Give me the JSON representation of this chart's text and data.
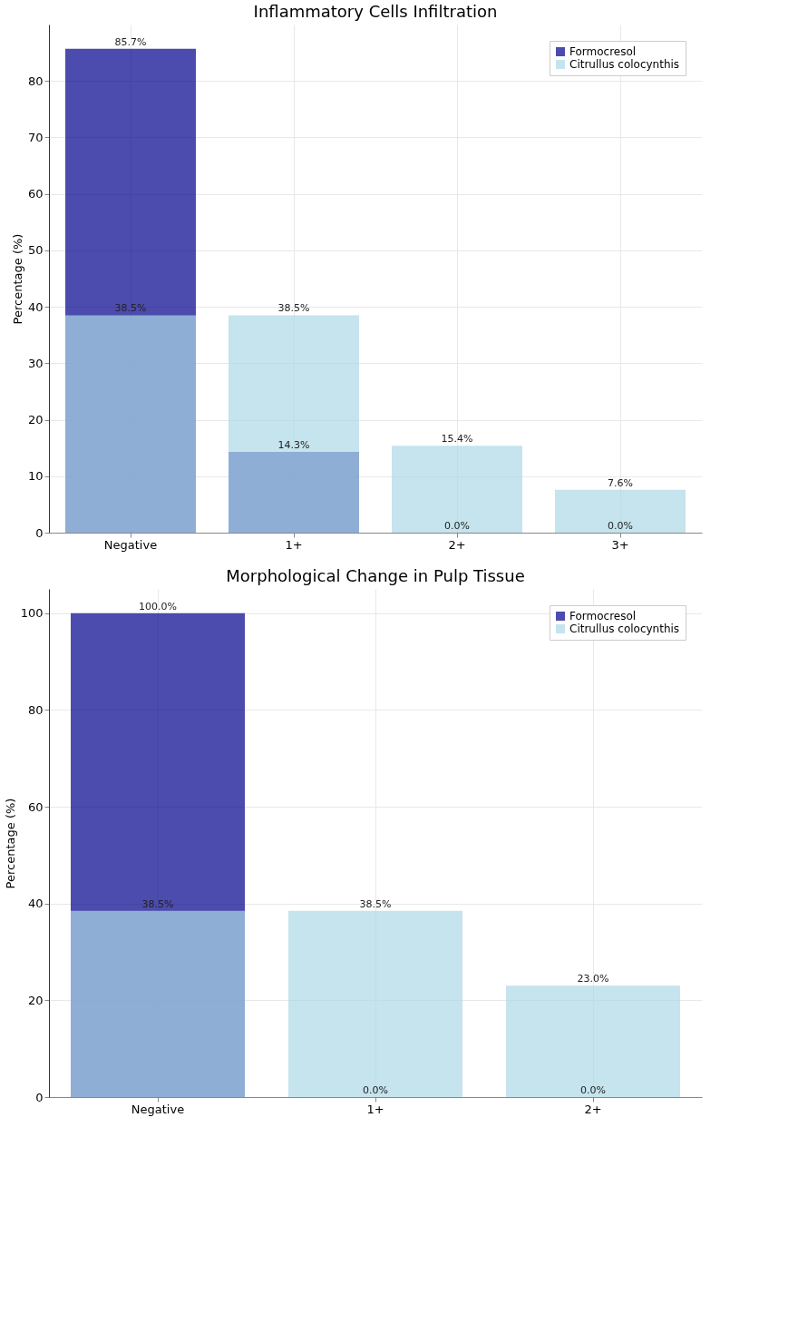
{
  "chart_data": [
    {
      "type": "bar",
      "title": "Inflammatory Cells Infiltration",
      "ylabel": "Percentage (%)",
      "categories": [
        "Negative",
        "1+",
        "2+",
        "3+"
      ],
      "ylim": [
        0,
        90
      ],
      "yticks": [
        0,
        10,
        20,
        30,
        40,
        50,
        60,
        70,
        80
      ],
      "grid": true,
      "legend": "top right",
      "series": [
        {
          "name": "Formocresol",
          "color": "#00008b",
          "values": [
            85.7,
            14.3,
            0.0,
            0.0
          ],
          "value_labels": [
            "85.7%",
            "14.3%",
            "0.0%",
            "0.0%"
          ]
        },
        {
          "name": "Citrullus colocynthis",
          "color": "#add8e6",
          "values": [
            38.5,
            38.5,
            15.4,
            7.6
          ],
          "value_labels": [
            "38.5%",
            "38.5%",
            "15.4%",
            "7.6%"
          ]
        }
      ]
    },
    {
      "type": "bar",
      "title": "Morphological Change in Pulp Tissue",
      "ylabel": "Percentage (%)",
      "categories": [
        "Negative",
        "1+",
        "2+"
      ],
      "ylim": [
        0,
        105
      ],
      "yticks": [
        0,
        20,
        40,
        60,
        80,
        100
      ],
      "grid": true,
      "legend": "top right",
      "series": [
        {
          "name": "Formocresol",
          "color": "#00008b",
          "values": [
            100.0,
            0.0,
            0.0
          ],
          "value_labels": [
            "100.0%",
            "0.0%",
            "0.0%"
          ]
        },
        {
          "name": "Citrullus colocynthis",
          "color": "#add8e6",
          "values": [
            38.5,
            38.5,
            23.0
          ],
          "value_labels": [
            "38.5%",
            "38.5%",
            "23.0%"
          ]
        }
      ]
    }
  ]
}
